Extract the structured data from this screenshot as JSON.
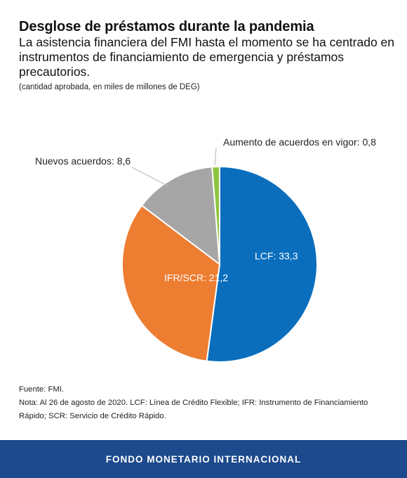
{
  "header": {
    "title": "Desglose de préstamos durante la pandemia",
    "subtitle": "La asistencia financiera del FMI hasta el momento se ha centrado en instrumentos de financiamiento de emergencia y préstamos precautorios.",
    "units": "(cantidad aprobada, en miles de millones de DEG)"
  },
  "chart_data": {
    "type": "pie",
    "title": "Desglose de préstamos durante la pandemia",
    "slices": [
      {
        "name": "Aumento de acuerdos en vigor",
        "value": 0.8,
        "label": "Aumento de acuerdos en vigor: 0,8",
        "color": "#8cc63f",
        "label_position": "outside"
      },
      {
        "name": "LCF",
        "value": 33.3,
        "label": "LCF: 33,3",
        "color": "#0a6ebd",
        "label_position": "inside"
      },
      {
        "name": "IFR/SCR",
        "value": 21.2,
        "label": "IFR/SCR: 21,2",
        "color": "#ed7d31",
        "label_position": "inside"
      },
      {
        "name": "Nuevos acuerdos",
        "value": 8.6,
        "label": "Nuevos acuerdos: 8,6",
        "color": "#a6a6a6",
        "label_position": "outside"
      }
    ]
  },
  "notes": {
    "source": "Fuente: FMI.",
    "note": "Nota: Al 26 de agosto de 2020. LCF: Línea de Crédito Flexible; IFR: Instrumento de Financiamiento Rápido; SCR: Servicio de Crédito Rápido."
  },
  "footer": {
    "org_name": "FONDO MONETARIO INTERNACIONAL",
    "background_color": "#1c4a8c"
  }
}
